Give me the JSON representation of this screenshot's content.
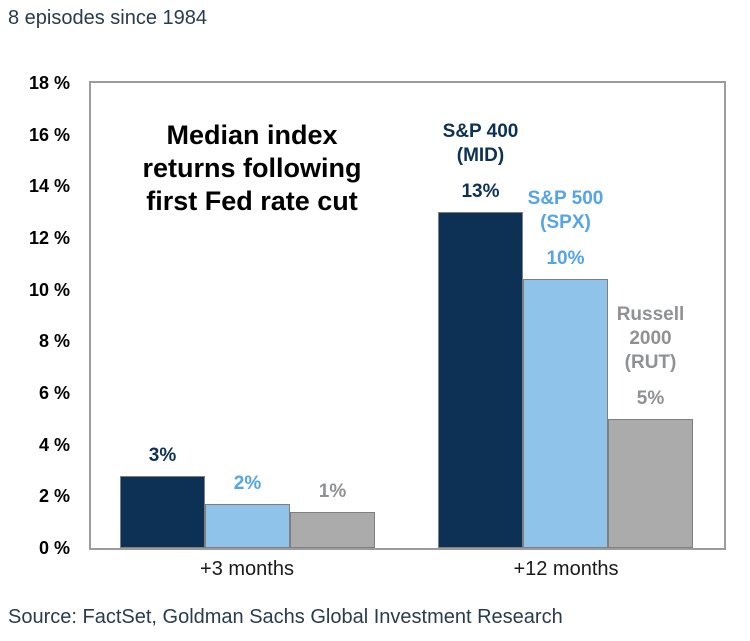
{
  "header": {
    "note": "8 episodes since 1984"
  },
  "footer": {
    "source": "Source: FactSet, Goldman Sachs Global Investment Research"
  },
  "colors": {
    "navy": "#0D3155",
    "light_blue_fill": "#8FC3EA",
    "light_blue_text": "#54A4E6",
    "gray_fill": "#ABABAB",
    "gray_text": "#8F9193",
    "bar_border": "#7F7F7F",
    "plot_border": "#9C9C9C",
    "note_text": "#2A3B4E",
    "axis_text": "#1A1A1A"
  },
  "chart_data": {
    "type": "bar",
    "title": "Median index returns following first Fed rate cut",
    "title_lines": [
      "Median index",
      "returns following",
      "first Fed rate cut"
    ],
    "categories": [
      "+3 months",
      "+12 months"
    ],
    "series": [
      {
        "name": "S&P 400 (MID)",
        "name_lines": [
          "S&P 400",
          "(MID)"
        ],
        "values": [
          2.8,
          13.0
        ],
        "value_labels": [
          "3%",
          "13%"
        ],
        "fill": "#0D3155",
        "text_color": "#0D3155"
      },
      {
        "name": "S&P 500 (SPX)",
        "name_lines": [
          "S&P 500",
          "(SPX)"
        ],
        "values": [
          1.7,
          10.4
        ],
        "value_labels": [
          "2%",
          "10%"
        ],
        "fill": "#8FC3EA",
        "text_color": "#54A4E6"
      },
      {
        "name": "Russell 2000 (RUT)",
        "name_lines": [
          "Russell",
          "2000",
          "(RUT)"
        ],
        "values": [
          1.4,
          5.0
        ],
        "value_labels": [
          "1%",
          "5%"
        ],
        "fill": "#ABABAB",
        "text_color": "#8F9193"
      }
    ],
    "xlabel": "",
    "ylabel": "",
    "ylim": [
      0,
      18
    ],
    "ytick_step": 2,
    "ytick_suffix": " %",
    "yticks": [
      "0 %",
      "2 %",
      "4 %",
      "6 %",
      "8 %",
      "10 %",
      "12 %",
      "14 %",
      "16 %",
      "18 %"
    ],
    "grid": false,
    "legend_position": "series names shown inline above +12 months bars"
  }
}
